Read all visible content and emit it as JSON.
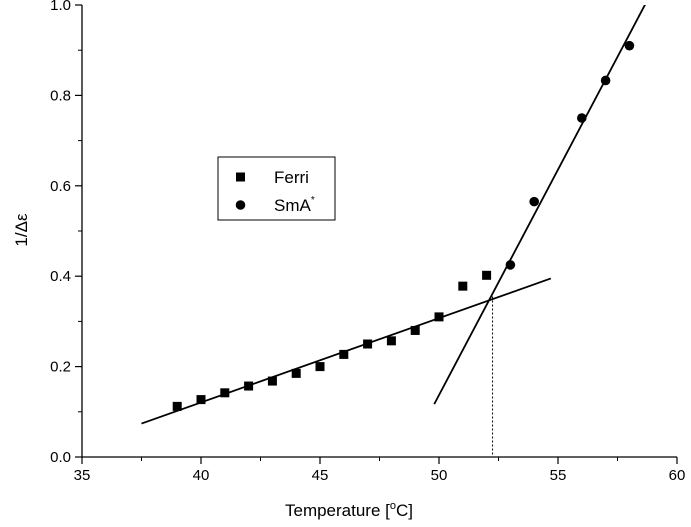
{
  "chart_data": {
    "type": "scatter",
    "xlabel": "Temperature [",
    "xlabel_sup": "o",
    "xlabel_end": "C]",
    "ylabel": "1/Δε",
    "xlim": [
      35,
      60
    ],
    "ylim": [
      0.0,
      1.0
    ],
    "x_ticks": [
      "35",
      "40",
      "45",
      "50",
      "55",
      "60"
    ],
    "y_ticks": [
      "0.0",
      "0.2",
      "0.4",
      "0.6",
      "0.8",
      "1.0"
    ],
    "grid": false,
    "legend_position": "upper-left-middle",
    "series": [
      {
        "name": "Ferri",
        "marker": "square",
        "x": [
          39,
          40,
          41,
          42,
          43,
          44,
          45,
          46,
          47,
          48,
          49,
          50,
          51,
          52
        ],
        "y": [
          0.112,
          0.127,
          0.142,
          0.157,
          0.168,
          0.185,
          0.2,
          0.227,
          0.25,
          0.257,
          0.28,
          0.31,
          0.378,
          0.402
        ]
      },
      {
        "name": "SmA",
        "name_sup": "*",
        "marker": "circle",
        "x": [
          53,
          54,
          56,
          57,
          58
        ],
        "y": [
          0.425,
          0.565,
          0.75,
          0.833,
          0.91
        ]
      }
    ],
    "fit_lines": [
      {
        "x": [
          37.5,
          54.7
        ],
        "y": [
          0.074,
          0.395
        ]
      },
      {
        "x": [
          49.8,
          58.9
        ],
        "y": [
          0.117,
          1.025
        ]
      }
    ],
    "vertical_marker": {
      "x": 52.25,
      "y_top": 0.355
    }
  }
}
